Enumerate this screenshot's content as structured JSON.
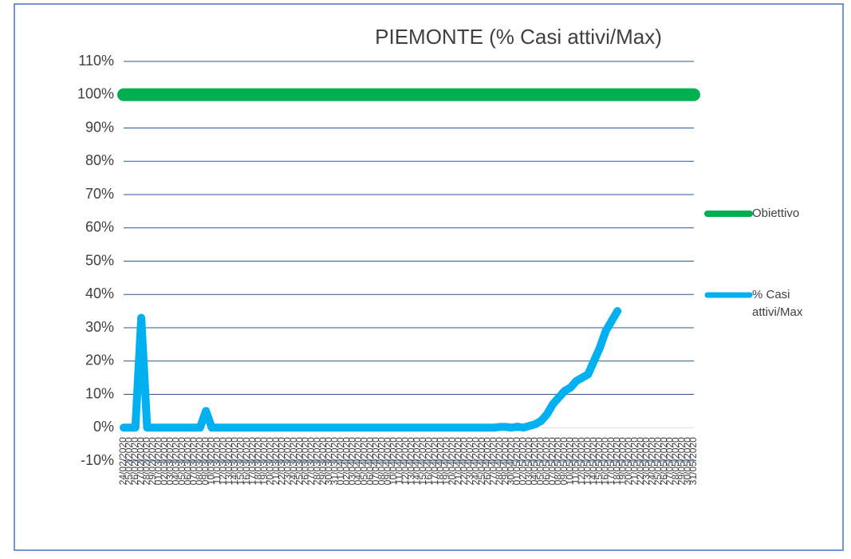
{
  "chart_data": {
    "type": "line",
    "title": "PIEMONTE (% Casi attivi/Max)",
    "categories": [
      "24/02/2020",
      "25/02/2020",
      "26/02/2020",
      "27/02/2020",
      "28/02/2020",
      "29/02/2020",
      "01/03/2020",
      "02/03/2020",
      "03/03/2020",
      "04/03/2020",
      "05/03/2020",
      "06/03/2020",
      "07/03/2020",
      "08/03/2020",
      "09/03/2020",
      "10/03/2020",
      "11/03/2020",
      "12/03/2020",
      "13/03/2020",
      "14/03/2020",
      "15/03/2020",
      "16/03/2020",
      "17/03/2020",
      "18/03/2020",
      "19/03/2020",
      "20/03/2020",
      "21/03/2020",
      "22/03/2020",
      "23/03/2020",
      "24/03/2020",
      "25/03/2020",
      "26/03/2020",
      "27/03/2020",
      "28/03/2020",
      "29/03/2020",
      "30/03/2020",
      "31/03/2020",
      "01/04/2020",
      "02/04/2020",
      "03/04/2020",
      "04/04/2020",
      "05/04/2020",
      "06/04/2020",
      "07/04/2020",
      "08/04/2020",
      "09/04/2020",
      "10/04/2020",
      "11/04/2020",
      "12/04/2020",
      "13/04/2020",
      "14/04/2020",
      "15/04/2020",
      "16/04/2020",
      "17/04/2020",
      "18/04/2020",
      "19/04/2020",
      "20/04/2020",
      "21/04/2020",
      "22/04/2020",
      "23/04/2020",
      "24/04/2020",
      "25/04/2020",
      "26/04/2020",
      "27/04/2020",
      "28/04/2020",
      "29/04/2020",
      "30/04/2020",
      "01/05/2020",
      "02/05/2020",
      "03/05/2020",
      "04/05/2020",
      "05/05/2020",
      "06/05/2020",
      "07/05/2020",
      "08/05/2020",
      "09/05/2020",
      "10/05/2020",
      "11/05/2020",
      "12/05/2020",
      "13/05/2020",
      "14/05/2020",
      "15/05/2020",
      "16/05/2020",
      "17/05/2020",
      "18/05/2020",
      "19/05/2020",
      "20/05/2020",
      "21/05/2020",
      "22/05/2020",
      "23/05/2020",
      "24/05/2020",
      "25/05/2020",
      "26/05/2020",
      "27/05/2020",
      "28/05/2020",
      "29/05/2020",
      "30/05/2020",
      "31/05/2020"
    ],
    "series": [
      {
        "name": "Obiettivo",
        "color": "#00b050",
        "values": [
          100,
          100,
          100,
          100,
          100,
          100,
          100,
          100,
          100,
          100,
          100,
          100,
          100,
          100,
          100,
          100,
          100,
          100,
          100,
          100,
          100,
          100,
          100,
          100,
          100,
          100,
          100,
          100,
          100,
          100,
          100,
          100,
          100,
          100,
          100,
          100,
          100,
          100,
          100,
          100,
          100,
          100,
          100,
          100,
          100,
          100,
          100,
          100,
          100,
          100,
          100,
          100,
          100,
          100,
          100,
          100,
          100,
          100,
          100,
          100,
          100,
          100,
          100,
          100,
          100,
          100,
          100,
          100,
          100,
          100,
          100,
          100,
          100,
          100,
          100,
          100,
          100,
          100,
          100,
          100,
          100,
          100,
          100,
          100,
          100,
          100,
          100,
          100,
          100,
          100,
          100,
          100,
          100,
          100,
          100,
          100,
          100,
          100
        ]
      },
      {
        "name": "% Casi attivi/Max",
        "color": "#00b0f0",
        "values": [
          0,
          0,
          0,
          33,
          0,
          0,
          0,
          0,
          0,
          0,
          0,
          0,
          0,
          0,
          5,
          0,
          0,
          0,
          0,
          0,
          0,
          0,
          0,
          0,
          0,
          0,
          0,
          0,
          0,
          0,
          0,
          0,
          0,
          0,
          0,
          0,
          0,
          0,
          0,
          0,
          0,
          0,
          0,
          0,
          0,
          0,
          0,
          0,
          0,
          0,
          0,
          0,
          0,
          0,
          0,
          0,
          0,
          0,
          0,
          0,
          0,
          0,
          0,
          0,
          0.2,
          0.2,
          0,
          0.3,
          0,
          0.5,
          1,
          2,
          4,
          7,
          9,
          11,
          12,
          14,
          15,
          16,
          20,
          24,
          29,
          32,
          35,
          null,
          null,
          null,
          null,
          null,
          null,
          null,
          null,
          null,
          null,
          null,
          null,
          null
        ]
      }
    ],
    "ylim": [
      -10,
      110
    ],
    "yticks": [
      {
        "value": -10,
        "label": "-10%"
      },
      {
        "value": 0,
        "label": "0%"
      },
      {
        "value": 10,
        "label": "10%"
      },
      {
        "value": 20,
        "label": "20%"
      },
      {
        "value": 30,
        "label": "30%"
      },
      {
        "value": 40,
        "label": "40%"
      },
      {
        "value": 50,
        "label": "50%"
      },
      {
        "value": 60,
        "label": "60%"
      },
      {
        "value": 70,
        "label": "70%"
      },
      {
        "value": 80,
        "label": "80%"
      },
      {
        "value": 90,
        "label": "90%"
      },
      {
        "value": 100,
        "label": "100%"
      },
      {
        "value": 110,
        "label": "110%"
      }
    ],
    "grid": true,
    "legend": "right"
  }
}
